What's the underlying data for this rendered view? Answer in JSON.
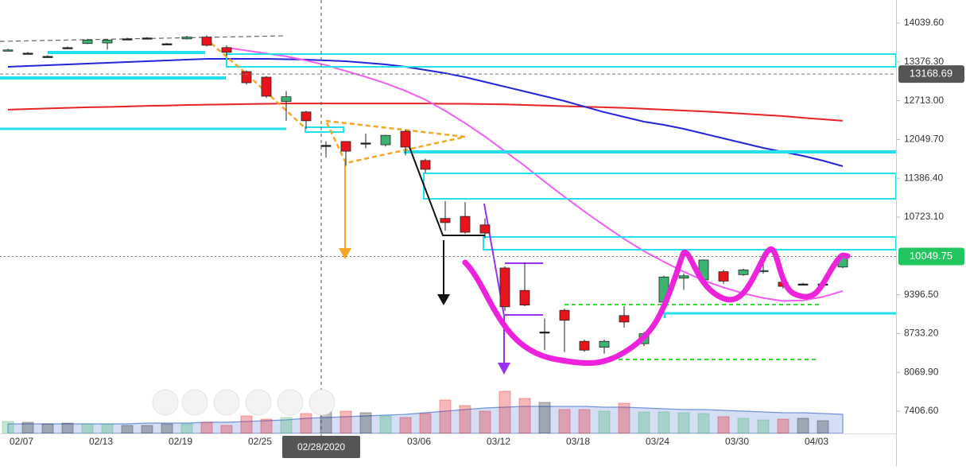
{
  "chart_data": {
    "type": "candlestick",
    "categories": [
      null,
      "02/07",
      null,
      null,
      null,
      "02/13",
      null,
      null,
      null,
      "02/19",
      null,
      null,
      null,
      "02/25",
      null,
      null,
      null,
      null,
      null,
      null,
      null,
      "03/06",
      null,
      null,
      null,
      "03/12",
      null,
      null,
      null,
      "03/18",
      null,
      null,
      null,
      "03/24",
      null,
      null,
      null,
      "03/30",
      null,
      null,
      null,
      "04/03",
      null
    ],
    "open": [
      13570,
      13525,
      13470,
      13620,
      13690,
      13700,
      13770,
      13785,
      13686,
      13770,
      13800,
      13620,
      13210,
      13115,
      12700,
      12520,
      11950,
      12015,
      11990,
      11960,
      12190,
      11690,
      10700,
      10735,
      10590,
      9853,
      9470,
      8760,
      9130,
      8600,
      8500,
      9040,
      8560,
      9270,
      9680,
      9650,
      9790,
      9740,
      9800,
      9610,
      9580,
      9580,
      9870
    ],
    "high": [
      13600,
      13545,
      13490,
      13640,
      13770,
      13760,
      13790,
      13800,
      13700,
      13820,
      13830,
      13660,
      13230,
      13130,
      12880,
      12540,
      12020,
      12020,
      12150,
      12130,
      12220,
      11720,
      10995,
      10980,
      10700,
      9880,
      9950,
      8990,
      9160,
      8630,
      8630,
      9200,
      8760,
      9720,
      9760,
      10000,
      9820,
      9840,
      10070,
      9650,
      9600,
      9600,
      10060
    ],
    "low": [
      13560,
      13505,
      13450,
      13600,
      13680,
      13590,
      13750,
      13770,
      13670,
      13760,
      13640,
      13480,
      12990,
      12760,
      12370,
      12230,
      11740,
      11600,
      11900,
      11930,
      11780,
      11480,
      10490,
      10440,
      10360,
      9120,
      9200,
      8450,
      8420,
      8420,
      8390,
      8835,
      8520,
      9250,
      9480,
      9600,
      9580,
      9720,
      9760,
      9500,
      9560,
      9560,
      9850
    ],
    "close": [
      13580,
      13525,
      13470,
      13620,
      13750,
      13750,
      13770,
      13785,
      13686,
      13800,
      13660,
      13540,
      13020,
      12790,
      12780,
      12370,
      11950,
      11850,
      11990,
      12120,
      11920,
      11540,
      10630,
      10465,
      10450,
      9190,
      9220,
      8760,
      8960,
      8450,
      8600,
      8930,
      8730,
      9700,
      9720,
      9990,
      9630,
      9820,
      9810,
      9540,
      9580,
      9580,
      10050
    ],
    "up_color": "#3cb371",
    "down_color": "#e8141b",
    "flat_color": "#222222",
    "volume": [
      15,
      14,
      12,
      13,
      12,
      12,
      10,
      10,
      12,
      12,
      14,
      10,
      22,
      18,
      20,
      25,
      36,
      28,
      26,
      22,
      20,
      25,
      42,
      35,
      28,
      53,
      44,
      39,
      30,
      30,
      28,
      38,
      27,
      27,
      26,
      25,
      21,
      19,
      17,
      18,
      19,
      16,
      null
    ],
    "volume_ma": [
      12,
      12,
      12,
      12,
      12,
      12,
      12,
      13,
      13,
      13,
      14,
      14,
      15,
      16,
      17,
      19,
      20,
      21,
      22,
      23,
      24,
      26,
      28,
      30,
      32,
      33,
      34,
      34,
      34,
      34,
      33,
      33,
      32,
      31,
      30,
      30,
      29,
      28,
      27,
      26,
      26,
      25,
      24
    ],
    "volume_ma_color": "#6f93dc",
    "lines": [
      {
        "color": "#e82424",
        "values": [
          12560,
          12570,
          12580,
          12590,
          12600,
          12605,
          12615,
          12625,
          12630,
          12640,
          12645,
          12650,
          12655,
          12660,
          12665,
          12665,
          12665,
          12665,
          12665,
          12665,
          12665,
          12665,
          12660,
          12660,
          12655,
          12650,
          12640,
          12630,
          12620,
          12610,
          12600,
          12590,
          12575,
          12560,
          12545,
          12530,
          12510,
          12490,
          12470,
          12450,
          12420,
          12395,
          12370
        ]
      },
      {
        "color": "#2424d8",
        "values": [
          13292,
          13306,
          13319,
          13333,
          13346,
          13360,
          13374,
          13387,
          13401,
          13415,
          13428,
          13428,
          13428,
          13428,
          13421,
          13415,
          13401,
          13387,
          13360,
          13333,
          13292,
          13238,
          13183,
          13115,
          13034,
          12952,
          12871,
          12789,
          12708,
          12612,
          12517,
          12436,
          12354,
          12300,
          12232,
          12150,
          12069,
          11987,
          11906,
          11838,
          11770,
          11688,
          11593
        ]
      },
      {
        "color": "#f25cf2",
        "values": [
          null,
          null,
          null,
          null,
          null,
          null,
          null,
          null,
          null,
          null,
          null,
          13620,
          13570,
          13520,
          13470,
          13400,
          13320,
          13220,
          13120,
          13010,
          12880,
          12730,
          12540,
          12330,
          12100,
          11850,
          11600,
          11330,
          11070,
          10820,
          10580,
          10350,
          10140,
          9960,
          9790,
          9640,
          9520,
          9420,
          9340,
          9290,
          9300,
          9360,
          9460
        ]
      }
    ],
    "ylim": [
      7026,
      14434
    ],
    "yticks": [
      {
        "value": 14039.6,
        "label": "14039.60"
      },
      {
        "value": 13376.3,
        "label": "13376.30"
      },
      {
        "value": 12713,
        "label": "12713.00"
      },
      {
        "value": 12049.7,
        "label": "12049.70"
      },
      {
        "value": 11386.4,
        "label": "11386.40"
      },
      {
        "value": 10723.1,
        "label": "10723.10"
      },
      {
        "value": 9396.5,
        "label": "9396.50"
      },
      {
        "value": 8733.2,
        "label": "8733.20"
      },
      {
        "value": 8069.9,
        "label": "8069.90"
      },
      {
        "value": 7406.6,
        "label": "7406.60"
      }
    ],
    "price_markers": [
      {
        "value": 13168.69,
        "color": "#555555"
      },
      {
        "value": 10049.75,
        "color": "#22c55e"
      }
    ],
    "crosshair_label": "02/28/2020"
  }
}
